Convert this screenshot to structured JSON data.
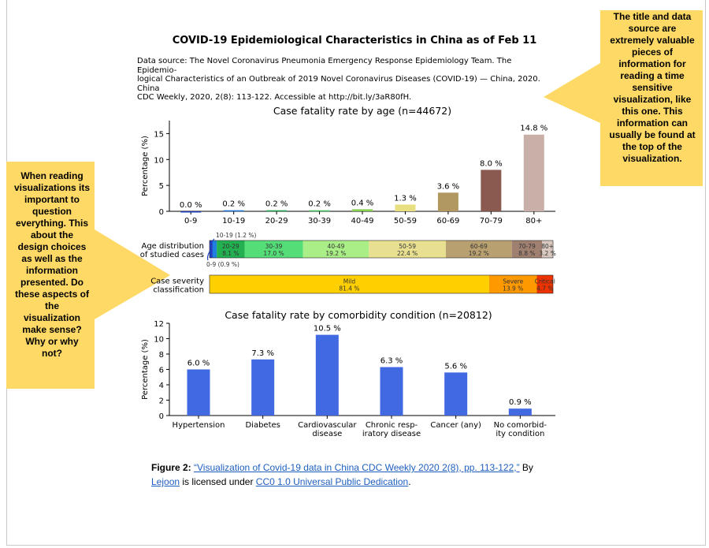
{
  "title": "COVID-19 Epidemiological Characteristics in China as of Feb 11",
  "source_lines": [
    "Data source: The Novel Coronavirus Pneumonia Emergency Response Epidemiology Team. The Epidemio-",
    "logical Characteristics of an Outbreak of 2019 Novel Coronavirus Diseases (COVID-19) — China, 2020. China",
    "CDC Weekly, 2020, 2(8): 113-122. Accessible at http://bit.ly/3aR80fH."
  ],
  "callout_right": {
    "lines": [
      "The title and data",
      "source are",
      "extremely valuable",
      "pieces of",
      "information for",
      "reading a time",
      "sensitive",
      "visualization, like",
      "this one. This",
      "information can",
      "usually be found at",
      "the top of the",
      "visualization."
    ],
    "color": "#ffd966"
  },
  "callout_left": {
    "lines": [
      "When reading",
      "visualizations its",
      "important to",
      "question",
      "everything. This",
      "about the",
      "design choices",
      "as well as the",
      "information",
      "presented. Do",
      "these aspects of",
      "the",
      "visualization",
      "make sense?",
      "Why or why",
      "not?"
    ],
    "color": "#ffd966"
  },
  "caption": {
    "figure_label": "Figure 2:",
    "link_title": "“Visualization of Covid-19 data in China CDC Weekly 2020 2(8), pp. 113-122,”",
    "by": " By",
    "author": "Lejoon",
    "licensed": " is licensed under ",
    "license": "CC0 1.0 Universal Public Dedication",
    "end": "."
  },
  "chart_data": [
    {
      "type": "bar",
      "title": "Case fatality rate by age (n=44672)",
      "ylabel": "Percentage (%)",
      "ylim": [
        0,
        17.5
      ],
      "yticks": [
        0,
        5,
        10,
        15
      ],
      "categories": [
        "0-9",
        "10-19",
        "20-29",
        "30-39",
        "40-49",
        "50-59",
        "60-69",
        "70-79",
        "80+"
      ],
      "values": [
        0.0,
        0.2,
        0.2,
        0.2,
        0.4,
        1.3,
        3.6,
        8.0,
        14.8
      ],
      "labels": [
        "0.0 %",
        "0.2 %",
        "0.2 %",
        "0.2 %",
        "0.4 %",
        "1.3 %",
        "3.6 %",
        "8.0 %",
        "14.8 %"
      ],
      "colors": [
        "#1f3fbf",
        "#1f6fcf",
        "#22a050",
        "#44c060",
        "#88d050",
        "#e8e080",
        "#b09860",
        "#8a5a50",
        "#c8b0a8"
      ]
    },
    {
      "type": "stacked-bar",
      "rows": [
        {
          "label_lines": [
            "Age distribution",
            "of studied cases"
          ],
          "segments": [
            {
              "name": "0-9",
              "value": 0.9,
              "color": "#2040c0"
            },
            {
              "name": "10-19",
              "value": 1.2,
              "color": "#2080e0"
            },
            {
              "name": "20-29",
              "value": 8.1,
              "color": "#22b050",
              "label1": "20-29",
              "label2": "8.1 %"
            },
            {
              "name": "30-39",
              "value": 17.0,
              "color": "#55dd77",
              "label1": "30-39",
              "label2": "17.0 %"
            },
            {
              "name": "40-49",
              "value": 19.2,
              "color": "#aaee88",
              "label1": "40-49",
              "label2": "19.2 %"
            },
            {
              "name": "50-59",
              "value": 22.4,
              "color": "#e8e090",
              "label1": "50-59",
              "label2": "22.4 %"
            },
            {
              "name": "60-69",
              "value": 19.2,
              "color": "#b8a070",
              "label1": "60-69",
              "label2": "19.2 %"
            },
            {
              "name": "70-79",
              "value": 8.8,
              "color": "#a08070",
              "label1": "70-79",
              "label2": "8.8 %"
            },
            {
              "name": "80+",
              "value": 3.2,
              "color": "#d8c8c0",
              "label1": "80+",
              "label2": "3.2 %"
            }
          ],
          "annotations": [
            "10-19 (1.2 %)",
            "0-9 (0.9 %)"
          ]
        },
        {
          "label_lines": [
            "Case severity",
            "classification"
          ],
          "segments": [
            {
              "name": "Mild",
              "value": 81.4,
              "color": "#ffd000",
              "label1": "Mild",
              "label2": "81.4 %"
            },
            {
              "name": "Severe",
              "value": 13.9,
              "color": "#ff9900",
              "label1": "Severe",
              "label2": "13.9 %"
            },
            {
              "name": "Critical",
              "value": 4.7,
              "color": "#ee3300",
              "label1": "Critical",
              "label2": "4.7 %"
            }
          ]
        }
      ]
    },
    {
      "type": "bar",
      "title": "Case fatality rate by comorbidity condition (n=20812)",
      "ylabel": "Percentage (%)",
      "ylim": [
        0,
        12
      ],
      "yticks": [
        0,
        2,
        4,
        6,
        8,
        10,
        12
      ],
      "categories": [
        [
          "Hypertension"
        ],
        [
          "Diabetes"
        ],
        [
          "Cardiovascular",
          "disease"
        ],
        [
          "Chronic resp-",
          "iratory disease"
        ],
        [
          "Cancer (any)"
        ],
        [
          "No comorbid-",
          "ity condition"
        ]
      ],
      "values": [
        6.0,
        7.3,
        10.5,
        6.3,
        5.6,
        0.9
      ],
      "labels": [
        "6.0 %",
        "7.3 %",
        "10.5 %",
        "6.3 %",
        "5.6 %",
        "0.9 %"
      ],
      "color": "#4169e1"
    }
  ]
}
